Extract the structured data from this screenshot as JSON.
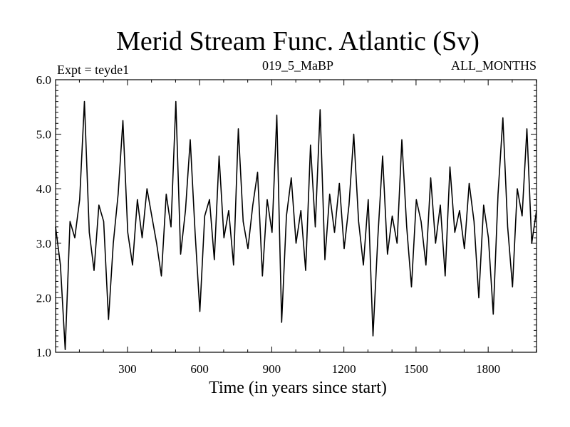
{
  "chart_data": {
    "type": "line",
    "title": "Merid Stream Func. Atlantic (Sv)",
    "subtitle_left": "Expt = teyde1",
    "subtitle_center": "019_5_MaBP",
    "subtitle_right": "ALL_MONTHS",
    "xlabel": "Time (in years since start)",
    "ylabel": "",
    "xlim": [
      1,
      2001
    ],
    "ylim": [
      1.0,
      6.0
    ],
    "x_ticks": [
      300,
      600,
      900,
      1200,
      1500,
      1800
    ],
    "x_tick_labels": [
      "300",
      "600",
      "900",
      "1200",
      "1500",
      "1800"
    ],
    "y_ticks": [
      1.0,
      2.0,
      3.0,
      4.0,
      5.0,
      6.0
    ],
    "y_tick_labels": [
      "1.0",
      "2.0",
      "3.0",
      "4.0",
      "5.0",
      "6.0"
    ],
    "grid": false,
    "line_color": "#000000",
    "series": [
      {
        "x": [
          1,
          21,
          41,
          61,
          81,
          101,
          121,
          141,
          161,
          181,
          201,
          221,
          241,
          261,
          281,
          301,
          321,
          341,
          361,
          381,
          401,
          421,
          441,
          461,
          481,
          501,
          521,
          541,
          561,
          581,
          601,
          621,
          641,
          661,
          681,
          701,
          721,
          741,
          761,
          781,
          801,
          821,
          841,
          861,
          881,
          901,
          921,
          941,
          961,
          981,
          1001,
          1021,
          1041,
          1061,
          1081,
          1101,
          1121,
          1141,
          1161,
          1181,
          1201,
          1221,
          1241,
          1261,
          1281,
          1301,
          1321,
          1341,
          1361,
          1381,
          1401,
          1421,
          1441,
          1461,
          1481,
          1501,
          1521,
          1541,
          1561,
          1581,
          1601,
          1621,
          1641,
          1661,
          1681,
          1701,
          1721,
          1741,
          1761,
          1781,
          1801,
          1821,
          1841,
          1861,
          1881,
          1901,
          1921,
          1941,
          1961,
          1981,
          2001
        ],
        "values": [
          3.3,
          2.6,
          1.05,
          3.4,
          3.1,
          3.8,
          5.6,
          3.2,
          2.5,
          3.7,
          3.4,
          1.6,
          3.0,
          3.9,
          5.25,
          3.2,
          2.6,
          3.8,
          3.1,
          4.0,
          3.5,
          3.0,
          2.4,
          3.9,
          3.3,
          5.6,
          2.8,
          3.6,
          4.9,
          3.2,
          1.75,
          3.5,
          3.8,
          2.7,
          4.6,
          3.1,
          3.6,
          2.6,
          5.1,
          3.4,
          2.9,
          3.7,
          4.3,
          2.4,
          3.8,
          3.2,
          5.35,
          1.55,
          3.5,
          4.2,
          3.0,
          3.6,
          2.5,
          4.8,
          3.3,
          5.45,
          2.7,
          3.9,
          3.2,
          4.1,
          2.9,
          3.7,
          5.0,
          3.4,
          2.6,
          3.8,
          1.3,
          3.1,
          4.6,
          2.8,
          3.5,
          3.0,
          4.9,
          3.3,
          2.2,
          3.8,
          3.4,
          2.6,
          4.2,
          3.0,
          3.7,
          2.4,
          4.4,
          3.2,
          3.6,
          2.9,
          4.1,
          3.4,
          2.0,
          3.7,
          3.1,
          1.7,
          3.9,
          5.3,
          3.3,
          2.2,
          4.0,
          3.5,
          5.1,
          3.0,
          3.6
        ]
      }
    ]
  }
}
